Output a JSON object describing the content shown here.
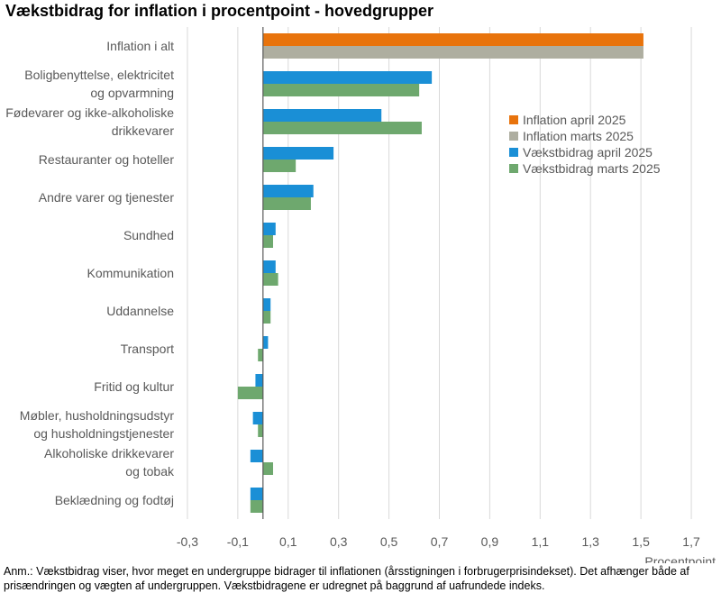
{
  "chart_data": {
    "type": "bar",
    "orientation": "horizontal",
    "title": "Vækstbidrag for inflation i procentpoint - hovedgrupper",
    "xlabel": "Procentpoint",
    "ylabel": "",
    "xlim": [
      -0.4,
      1.8
    ],
    "xticks": [
      -0.3,
      -0.1,
      0.1,
      0.3,
      0.5,
      0.7,
      0.9,
      1.1,
      1.3,
      1.5,
      1.7
    ],
    "xtick_labels": [
      "-0,3",
      "-0,1",
      "0,1",
      "0,3",
      "0,5",
      "0,7",
      "0,9",
      "1,1",
      "1,3",
      "1,5",
      "1,7"
    ],
    "grid": true,
    "legend_position": "right",
    "categories": [
      {
        "lines": [
          "Inflation i alt"
        ]
      },
      {
        "lines": [
          "Boligbenyttelse, elektricitet",
          "og opvarmning"
        ]
      },
      {
        "lines": [
          "Fødevarer og ikke-alkoholiske",
          "drikkevarer"
        ]
      },
      {
        "lines": [
          "Restauranter og hoteller"
        ]
      },
      {
        "lines": [
          "Andre varer og tjenester"
        ]
      },
      {
        "lines": [
          "Sundhed"
        ]
      },
      {
        "lines": [
          "Kommunikation"
        ]
      },
      {
        "lines": [
          "Uddannelse"
        ]
      },
      {
        "lines": [
          "Transport"
        ]
      },
      {
        "lines": [
          "Fritid og kultur"
        ]
      },
      {
        "lines": [
          "Møbler, husholdningsudstyr",
          "og husholdningstjenester"
        ]
      },
      {
        "lines": [
          "Alkoholiske drikkevarer",
          "og tobak"
        ]
      },
      {
        "lines": [
          "Beklædning og fodtøj"
        ]
      }
    ],
    "series": [
      {
        "name": "Inflation april 2025",
        "color": "#E8730C",
        "values": [
          1.51,
          null,
          null,
          null,
          null,
          null,
          null,
          null,
          null,
          null,
          null,
          null,
          null
        ]
      },
      {
        "name": "Inflation marts 2025",
        "color": "#AEAEA0",
        "values": [
          1.51,
          null,
          null,
          null,
          null,
          null,
          null,
          null,
          null,
          null,
          null,
          null,
          null
        ]
      },
      {
        "name": "Vækstbidrag april 2025",
        "color": "#1A8FD6",
        "values": [
          null,
          0.67,
          0.47,
          0.28,
          0.2,
          0.05,
          0.05,
          0.03,
          0.02,
          -0.03,
          -0.04,
          -0.05,
          -0.05
        ]
      },
      {
        "name": "Vækstbidrag marts 2025",
        "color": "#6EA86E",
        "values": [
          null,
          0.62,
          0.63,
          0.13,
          0.19,
          0.04,
          0.06,
          0.03,
          -0.02,
          -0.1,
          -0.02,
          0.04,
          -0.05
        ]
      }
    ]
  },
  "note": {
    "text": "Anm.: Vækstbidrag viser, hvor meget en undergruppe bidrager til inflationen (årsstigningen i forbrugerprisindekset). Det afhænger både af prisændringen og vægten af undergruppen. Vækstbidragene er udregnet på baggrund af uafrundede indeks."
  }
}
